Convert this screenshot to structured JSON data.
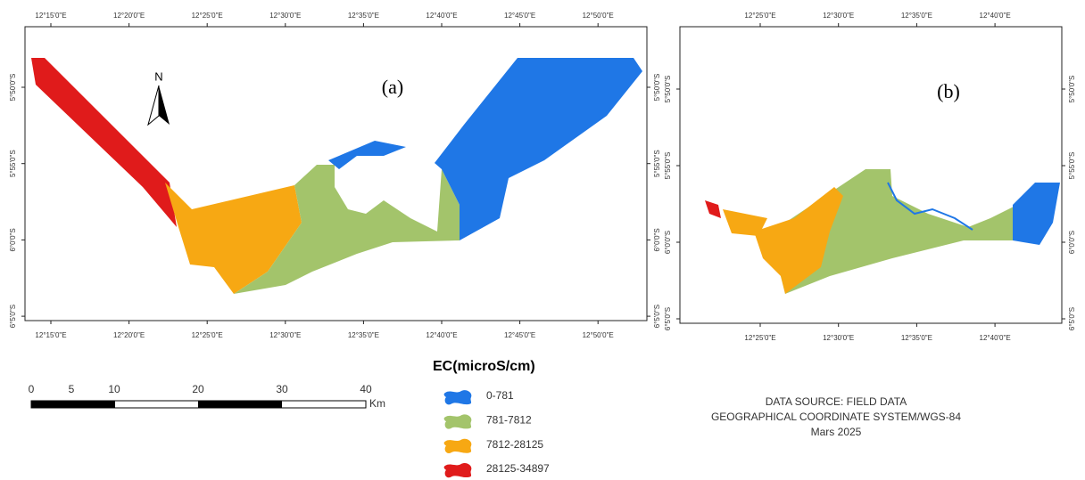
{
  "map_a": {
    "label": "(a)",
    "north": "N",
    "lon_ticks": [
      "12°15'0\"E",
      "12°20'0\"E",
      "12°25'0\"E",
      "12°30'0\"E",
      "12°35'0\"E",
      "12°40'0\"E",
      "12°45'0\"E",
      "12°50'0\"E"
    ],
    "lat_ticks": [
      "5°50'0\"S",
      "5°55'0\"S",
      "6°0'0\"S",
      "6°5'0\"S"
    ]
  },
  "map_b": {
    "label": "(b)",
    "lon_ticks": [
      "12°25'0\"E",
      "12°30'0\"E",
      "12°35'0\"E",
      "12°40'0\"E"
    ],
    "lat_ticks": [
      "5°50'0\"S",
      "5°55'0\"S",
      "6°0'0\"S",
      "6°5'0\"S"
    ]
  },
  "scale_bar": {
    "labels": [
      0,
      5,
      10,
      20,
      30,
      40
    ],
    "unit": "Km"
  },
  "legend": {
    "title": "EC(microS/cm)",
    "items": [
      {
        "label": "0-781",
        "color": "#1f77e6"
      },
      {
        "label": "781-7812",
        "color": "#a3c46b"
      },
      {
        "label": "7812-28125",
        "color": "#f7a813"
      },
      {
        "label": "28125-34897",
        "color": "#e01b1b"
      }
    ]
  },
  "source": {
    "lines": [
      "DATA SOURCE: FIELD DATA",
      "GEOGRAPHICAL COORDINATE SYSTEM/WGS-84",
      "Mars 2025"
    ]
  }
}
